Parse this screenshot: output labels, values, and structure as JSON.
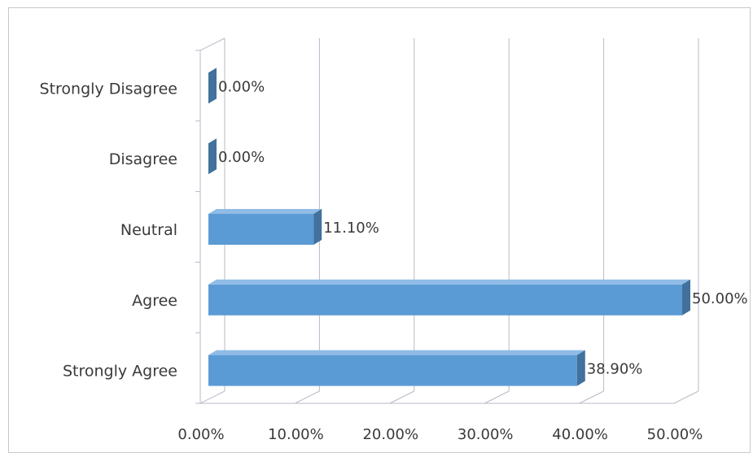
{
  "chart_data": {
    "type": "bar",
    "orientation": "horizontal",
    "style": "3d",
    "categories": [
      "Strongly Disagree",
      "Disagree",
      "Neutral",
      "Agree",
      "Strongly Agree"
    ],
    "values": [
      0.0,
      0.0,
      11.1,
      50.0,
      38.9
    ],
    "data_labels": [
      "0.00%",
      "0.00%",
      "11.10%",
      "50.00%",
      "38.90%"
    ],
    "x_ticks": [
      "0.00%",
      "10.00%",
      "20.00%",
      "30.00%",
      "40.00%",
      "50.00%"
    ],
    "xlim": [
      0,
      50
    ],
    "grid": true,
    "legend": "none",
    "bar_color": "#5b9bd5",
    "bar_top_color": "#8fbbe6",
    "bar_side_color": "#41719c"
  }
}
